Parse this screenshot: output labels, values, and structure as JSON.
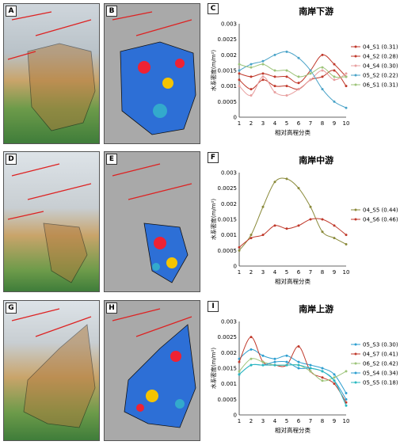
{
  "panel_labels": [
    "A",
    "B",
    "D",
    "E",
    "G",
    "H"
  ],
  "charts": [
    {
      "letter": "C",
      "title": "南岸下游"
    },
    {
      "letter": "F",
      "title": "南岸中游"
    },
    {
      "letter": "I",
      "title": "南岸上游"
    }
  ],
  "chart_data": [
    {
      "type": "line",
      "title": "南岸下游",
      "xlabel": "相对高程分类",
      "ylabel": "水系密度(m/m²)",
      "x": [
        1,
        2,
        3,
        4,
        5,
        6,
        7,
        8,
        9,
        10
      ],
      "ylim": [
        0,
        0.003
      ],
      "yticks": [
        "0",
        "0.0005",
        "0.001",
        "0.0015",
        "0.002",
        "0.0025",
        "0.003"
      ],
      "legend_position": "right",
      "series": [
        {
          "name": "04_S1 (0.31)",
          "color": "#c0392b",
          "values": [
            0.0014,
            0.0013,
            0.0014,
            0.0013,
            0.0013,
            0.0011,
            0.0015,
            0.002,
            0.0017,
            0.0013
          ]
        },
        {
          "name": "04_S2 (0.28)",
          "color": "#c0392b",
          "values": [
            0.0012,
            0.0009,
            0.0012,
            0.001,
            0.001,
            0.0009,
            0.0012,
            0.0013,
            0.0015,
            0.001
          ]
        },
        {
          "name": "04_S4 (0.30)",
          "color": "#e8a0a0",
          "values": [
            0.001,
            0.0007,
            0.0013,
            0.0008,
            0.0007,
            0.0009,
            0.0012,
            0.0015,
            0.0012,
            0.0014
          ]
        },
        {
          "name": "05_S2 (0.22)",
          "color": "#4aa3c8",
          "values": [
            0.0015,
            0.0017,
            0.0018,
            0.002,
            0.0021,
            0.0019,
            0.0015,
            0.0009,
            0.0005,
            0.0003
          ]
        },
        {
          "name": "06_S1 (0.31)",
          "color": "#9dc47a",
          "values": [
            0.0017,
            0.0016,
            0.0017,
            0.0015,
            0.0015,
            0.0013,
            0.0014,
            0.0016,
            0.0013,
            0.0013
          ]
        }
      ]
    },
    {
      "type": "line",
      "title": "南岸中游",
      "xlabel": "相对高程分类",
      "ylabel": "水系密度(m/m²)",
      "x": [
        1,
        2,
        3,
        4,
        5,
        6,
        7,
        8,
        9,
        10
      ],
      "ylim": [
        0,
        0.003
      ],
      "yticks": [
        "0",
        "0.0005",
        "0.001",
        "0.0015",
        "0.002",
        "0.0025",
        "0.003"
      ],
      "legend_position": "right",
      "series": [
        {
          "name": "04_S5 (0.44)",
          "color": "#8a8a3a",
          "values": [
            0.0005,
            0.001,
            0.0019,
            0.0027,
            0.0028,
            0.0025,
            0.0019,
            0.0011,
            0.0009,
            0.0007
          ]
        },
        {
          "name": "04_S6 (0.46)",
          "color": "#c0392b",
          "values": [
            0.0006,
            0.0009,
            0.001,
            0.0013,
            0.0012,
            0.0013,
            0.0015,
            0.0015,
            0.0013,
            0.001
          ]
        }
      ]
    },
    {
      "type": "line",
      "title": "南岸上游",
      "xlabel": "相对高程分类",
      "ylabel": "水系密度(m/m²)",
      "x": [
        1,
        2,
        3,
        4,
        5,
        6,
        7,
        8,
        9,
        10
      ],
      "ylim": [
        0,
        0.003
      ],
      "yticks": [
        "0",
        "0.0005",
        "0.001",
        "0.0015",
        "0.002",
        "0.0025",
        "0.003"
      ],
      "legend_position": "right",
      "series": [
        {
          "name": "05_S3 (0.30)",
          "color": "#2e9fd0",
          "values": [
            0.0018,
            0.0021,
            0.0019,
            0.0018,
            0.0019,
            0.0017,
            0.0016,
            0.0015,
            0.0013,
            0.0007
          ]
        },
        {
          "name": "04_S7 (0.41)",
          "color": "#c0392b",
          "values": [
            0.0017,
            0.0025,
            0.0017,
            0.0016,
            0.0016,
            0.0022,
            0.0014,
            0.0012,
            0.001,
            0.0004
          ]
        },
        {
          "name": "06_S2 (0.42)",
          "color": "#9dc47a",
          "values": [
            0.0014,
            0.0018,
            0.0017,
            0.0016,
            0.0016,
            0.0016,
            0.0014,
            0.0011,
            0.0012,
            0.0014
          ]
        },
        {
          "name": "05_S4 (0.34)",
          "color": "#2e9fd0",
          "values": [
            0.0013,
            0.0016,
            0.0016,
            0.0017,
            0.0017,
            0.0015,
            0.0015,
            0.0014,
            0.0011,
            0.0005
          ]
        },
        {
          "name": "05_S5 (0.18)",
          "color": "#2ab8c0",
          "values": [
            0.0013,
            0.0016,
            0.0016,
            0.0016,
            0.0016,
            0.0016,
            0.0015,
            0.0014,
            0.0011,
            0.0003
          ]
        }
      ]
    }
  ]
}
